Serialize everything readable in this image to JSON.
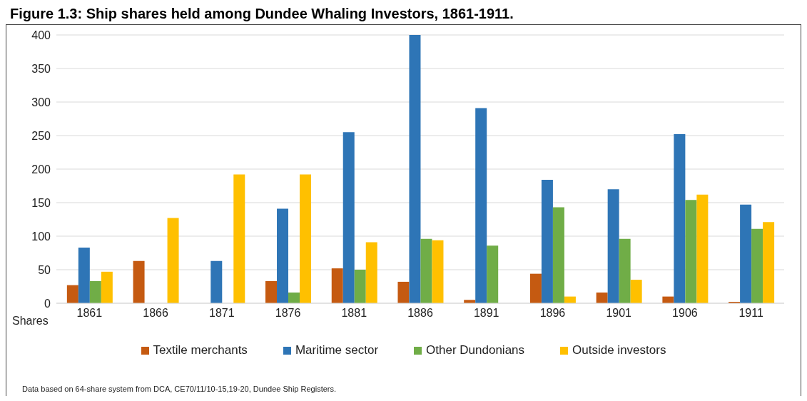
{
  "chart_data": {
    "type": "bar",
    "title": "Figure 1.3: Ship shares held among Dundee Whaling Investors, 1861-1911.",
    "ylabel": "Shares",
    "categories": [
      "1861",
      "1866",
      "1871",
      "1876",
      "1881",
      "1886",
      "1891",
      "1896",
      "1901",
      "1906",
      "1911"
    ],
    "series": [
      {
        "name": "Textile merchants",
        "color": "#c55a11",
        "values": [
          27,
          63,
          0,
          33,
          52,
          32,
          5,
          44,
          16,
          10,
          2
        ]
      },
      {
        "name": "Maritime sector",
        "color": "#2e75b6",
        "values": [
          83,
          0,
          63,
          141,
          255,
          400,
          291,
          184,
          170,
          252,
          147
        ]
      },
      {
        "name": "Other Dundonians",
        "color": "#70ad47",
        "values": [
          33,
          0,
          0,
          16,
          50,
          96,
          86,
          143,
          96,
          154,
          111
        ]
      },
      {
        "name": "Outside investors",
        "color": "#ffc000",
        "values": [
          47,
          127,
          192,
          192,
          91,
          94,
          0,
          10,
          35,
          162,
          121
        ]
      }
    ],
    "ylim": [
      0,
      400
    ],
    "yticks": [
      0,
      50,
      100,
      150,
      200,
      250,
      300,
      350,
      400
    ],
    "grid": "y",
    "legend": "bottom",
    "annotations": [
      "Data based on 64-share system from DCA, CE70/11/10-15,19-20,  Dundee Ship Registers."
    ]
  }
}
